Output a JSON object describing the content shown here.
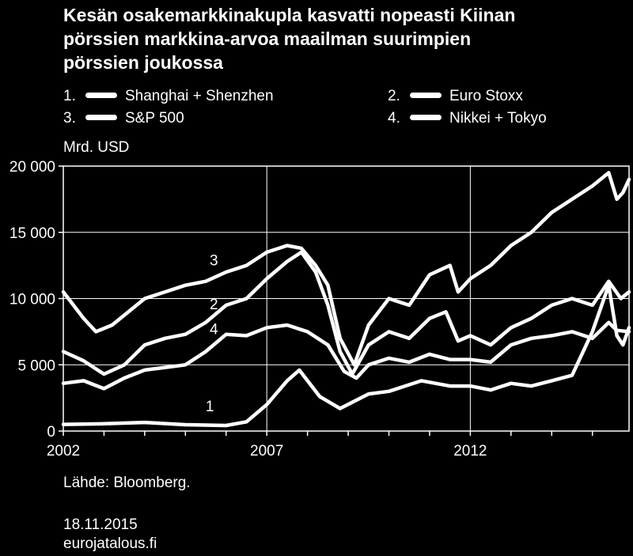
{
  "title_lines": [
    "Kesän osakemarkkinakupla kasvatti nopeasti Kiinan",
    "pörssien markkina-arvoa maailman suurimpien",
    "pörssien joukossa"
  ],
  "unit_label": "Mrd. USD",
  "source": "Lähde: Bloomberg.",
  "date": "18.11.2015",
  "site": "eurojatalous.fi",
  "colors": {
    "background": "#000000",
    "line": "#ffffff",
    "grid": "#ffffff"
  },
  "legend": [
    {
      "num": "1.",
      "label": "Shanghai + Shenzhen"
    },
    {
      "num": "2.",
      "label": "Euro Stoxx"
    },
    {
      "num": "3.",
      "label": "S&P 500"
    },
    {
      "num": "4.",
      "label": "Nikkei + Tokyo"
    }
  ],
  "chart_data": {
    "type": "line",
    "ylabel": "Mrd. USD",
    "ylim": [
      0,
      20000
    ],
    "yticks": [
      0,
      5000,
      10000,
      15000,
      20000
    ],
    "ytick_labels": [
      "0",
      "5 000",
      "10 000",
      "15 000",
      "20 000"
    ],
    "xlim": [
      2002.0,
      2015.9
    ],
    "xtick_years": [
      2002,
      2007,
      2012
    ],
    "xtick_labels": [
      "2002",
      "2007",
      "2012"
    ],
    "grid": true,
    "legend_position": "top",
    "series": [
      {
        "name": "Shanghai + Shenzhen",
        "label": "1",
        "label_at": [
          2005.6,
          1500
        ],
        "points": [
          [
            2002.0,
            500
          ],
          [
            2003.0,
            550
          ],
          [
            2004.0,
            650
          ],
          [
            2005.0,
            480
          ],
          [
            2006.0,
            420
          ],
          [
            2006.5,
            700
          ],
          [
            2007.0,
            2000
          ],
          [
            2007.5,
            3800
          ],
          [
            2007.8,
            4600
          ],
          [
            2008.3,
            2600
          ],
          [
            2008.8,
            1700
          ],
          [
            2009.5,
            2800
          ],
          [
            2010.0,
            3000
          ],
          [
            2010.8,
            3800
          ],
          [
            2011.5,
            3400
          ],
          [
            2012.0,
            3400
          ],
          [
            2012.5,
            3100
          ],
          [
            2013.0,
            3600
          ],
          [
            2013.5,
            3400
          ],
          [
            2014.0,
            3800
          ],
          [
            2014.5,
            4200
          ],
          [
            2015.0,
            7500
          ],
          [
            2015.4,
            11000
          ],
          [
            2015.6,
            7200
          ],
          [
            2015.75,
            6500
          ],
          [
            2015.9,
            7800
          ]
        ]
      },
      {
        "name": "Euro Stoxx",
        "label": "2",
        "label_at": [
          2005.7,
          9200
        ],
        "points": [
          [
            2002.0,
            6000
          ],
          [
            2002.5,
            5300
          ],
          [
            2003.0,
            4300
          ],
          [
            2003.5,
            5000
          ],
          [
            2004.0,
            6500
          ],
          [
            2004.5,
            7000
          ],
          [
            2005.0,
            7300
          ],
          [
            2005.5,
            8200
          ],
          [
            2006.0,
            9500
          ],
          [
            2006.5,
            10000
          ],
          [
            2007.0,
            11500
          ],
          [
            2007.5,
            12800
          ],
          [
            2007.85,
            13500
          ],
          [
            2008.2,
            12000
          ],
          [
            2008.5,
            9500
          ],
          [
            2008.8,
            6000
          ],
          [
            2009.1,
            4300
          ],
          [
            2009.5,
            6500
          ],
          [
            2010.0,
            7500
          ],
          [
            2010.5,
            7000
          ],
          [
            2011.0,
            8500
          ],
          [
            2011.4,
            9000
          ],
          [
            2011.7,
            6800
          ],
          [
            2012.0,
            7200
          ],
          [
            2012.5,
            6500
          ],
          [
            2013.0,
            7800
          ],
          [
            2013.5,
            8500
          ],
          [
            2014.0,
            9500
          ],
          [
            2014.5,
            10000
          ],
          [
            2015.0,
            9500
          ],
          [
            2015.4,
            11300
          ],
          [
            2015.7,
            10000
          ],
          [
            2015.9,
            10500
          ]
        ]
      },
      {
        "name": "S&P 500",
        "label": "3",
        "label_at": [
          2005.7,
          12500
        ],
        "points": [
          [
            2002.0,
            10500
          ],
          [
            2002.5,
            8500
          ],
          [
            2002.8,
            7500
          ],
          [
            2003.2,
            8000
          ],
          [
            2004.0,
            10000
          ],
          [
            2004.5,
            10500
          ],
          [
            2005.0,
            11000
          ],
          [
            2005.5,
            11300
          ],
          [
            2006.0,
            12000
          ],
          [
            2006.5,
            12500
          ],
          [
            2007.0,
            13500
          ],
          [
            2007.5,
            14000
          ],
          [
            2007.85,
            13800
          ],
          [
            2008.2,
            12500
          ],
          [
            2008.5,
            11000
          ],
          [
            2008.8,
            7000
          ],
          [
            2009.15,
            5000
          ],
          [
            2009.5,
            8000
          ],
          [
            2010.0,
            10000
          ],
          [
            2010.5,
            9500
          ],
          [
            2011.0,
            11800
          ],
          [
            2011.5,
            12500
          ],
          [
            2011.7,
            10500
          ],
          [
            2012.0,
            11500
          ],
          [
            2012.5,
            12500
          ],
          [
            2013.0,
            14000
          ],
          [
            2013.5,
            15000
          ],
          [
            2014.0,
            16500
          ],
          [
            2014.5,
            17500
          ],
          [
            2015.0,
            18500
          ],
          [
            2015.4,
            19500
          ],
          [
            2015.6,
            17500
          ],
          [
            2015.75,
            18000
          ],
          [
            2015.9,
            19000
          ]
        ]
      },
      {
        "name": "Nikkei + Tokyo",
        "label": "4",
        "label_at": [
          2005.7,
          7300
        ],
        "points": [
          [
            2002.0,
            3600
          ],
          [
            2002.5,
            3800
          ],
          [
            2003.0,
            3200
          ],
          [
            2003.5,
            4000
          ],
          [
            2004.0,
            4600
          ],
          [
            2004.5,
            4800
          ],
          [
            2005.0,
            5000
          ],
          [
            2005.5,
            6000
          ],
          [
            2006.0,
            7300
          ],
          [
            2006.5,
            7200
          ],
          [
            2007.0,
            7800
          ],
          [
            2007.5,
            8000
          ],
          [
            2008.0,
            7500
          ],
          [
            2008.5,
            6500
          ],
          [
            2008.9,
            4500
          ],
          [
            2009.2,
            4000
          ],
          [
            2009.5,
            5000
          ],
          [
            2010.0,
            5500
          ],
          [
            2010.5,
            5200
          ],
          [
            2011.0,
            5800
          ],
          [
            2011.5,
            5400
          ],
          [
            2012.0,
            5400
          ],
          [
            2012.5,
            5200
          ],
          [
            2013.0,
            6500
          ],
          [
            2013.5,
            7000
          ],
          [
            2014.0,
            7200
          ],
          [
            2014.5,
            7500
          ],
          [
            2015.0,
            7000
          ],
          [
            2015.4,
            8200
          ],
          [
            2015.6,
            7600
          ],
          [
            2015.9,
            7500
          ]
        ]
      }
    ]
  }
}
